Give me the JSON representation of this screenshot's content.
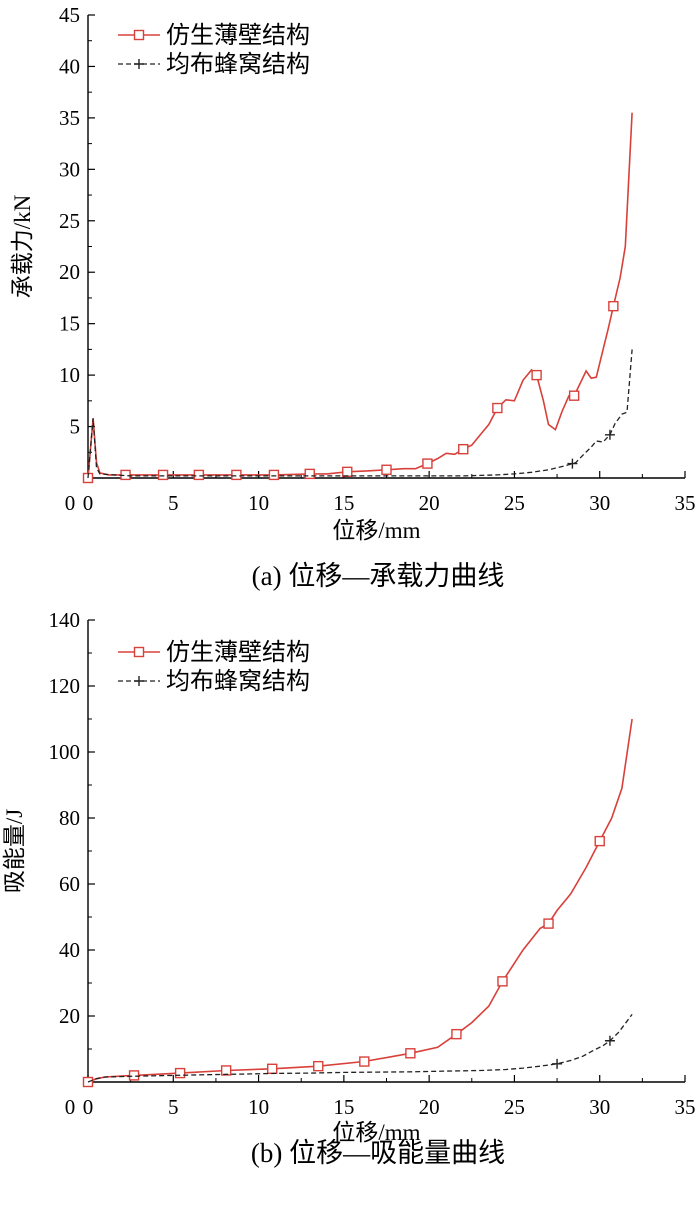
{
  "figure": {
    "colors": {
      "bionic": "#d8403a",
      "honeycomb": "#222222"
    }
  },
  "chart_data": [
    {
      "type": "line",
      "caption": "(a)  位移—承载力曲线",
      "xlabel": "位移/mm",
      "ylabel": "承载力/kN",
      "xlim": [
        0,
        35
      ],
      "ylim": [
        0,
        45
      ],
      "xticks": [
        0,
        5,
        10,
        15,
        20,
        25,
        30,
        35
      ],
      "yticks": [
        5,
        10,
        15,
        20,
        25,
        30,
        35,
        40,
        45
      ],
      "grid": false,
      "legend_position": "top-left",
      "series": [
        {
          "name": "仿生薄壁结构",
          "style": "solid",
          "marker": "square",
          "x": [
            0,
            0.3,
            0.5,
            0.7,
            1.2,
            2.2,
            3.5,
            4.4,
            5.5,
            6.5,
            8.0,
            8.7,
            10.0,
            10.9,
            12.0,
            13.0,
            14.0,
            15.2,
            16.5,
            17.5,
            18.5,
            19.2,
            19.9,
            20.5,
            21.0,
            21.5,
            22.0,
            22.5,
            23.0,
            23.5,
            24.0,
            24.5,
            25.0,
            25.5,
            26.0,
            26.3,
            26.7,
            27.0,
            27.4,
            27.8,
            28.2,
            28.5,
            28.8,
            29.2,
            29.5,
            29.8,
            30.2,
            30.5,
            30.8,
            31.2,
            31.5,
            31.9
          ],
          "y": [
            0,
            5.8,
            1.5,
            0.5,
            0.3,
            0.3,
            0.3,
            0.3,
            0.3,
            0.3,
            0.3,
            0.3,
            0.3,
            0.3,
            0.35,
            0.4,
            0.4,
            0.6,
            0.7,
            0.8,
            0.9,
            0.9,
            1.4,
            1.9,
            2.4,
            2.3,
            2.8,
            3.2,
            4.2,
            5.2,
            6.8,
            7.6,
            7.5,
            9.5,
            10.5,
            10.0,
            7.5,
            5.2,
            4.7,
            6.5,
            8.0,
            8.0,
            9.0,
            10.4,
            9.7,
            9.8,
            12.5,
            14.5,
            16.7,
            19.5,
            22.5,
            35.5
          ],
          "marker_x": [
            0,
            2.2,
            4.4,
            6.5,
            8.7,
            10.9,
            13.0,
            15.2,
            17.5,
            19.9,
            22.0,
            24.0,
            26.3,
            28.5,
            30.8
          ]
        },
        {
          "name": "均布蜂窝结构",
          "style": "dashed",
          "marker": "plus",
          "x": [
            0,
            0.3,
            0.5,
            0.7,
            1.5,
            2.5,
            3.5,
            5.0,
            7.0,
            9.0,
            11.0,
            13.0,
            15.0,
            17.0,
            19.0,
            20.0,
            21.0,
            22.0,
            23.0,
            24.0,
            25.0,
            26.0,
            27.0,
            28.0,
            28.6,
            29.0,
            29.5,
            29.8,
            30.2,
            30.6,
            30.9,
            31.3,
            31.6,
            31.9
          ],
          "y": [
            0,
            5.8,
            1.0,
            0.4,
            0.3,
            0.2,
            0.2,
            0.2,
            0.2,
            0.2,
            0.2,
            0.2,
            0.2,
            0.2,
            0.2,
            0.2,
            0.2,
            0.2,
            0.25,
            0.3,
            0.4,
            0.55,
            0.8,
            1.2,
            1.5,
            2.2,
            3.0,
            3.6,
            3.5,
            4.2,
            5.3,
            6.2,
            6.4,
            12.5
          ],
          "marker_x": [
            28.4,
            30.6
          ]
        }
      ]
    },
    {
      "type": "line",
      "caption": "(b)  位移—吸能量曲线",
      "xlabel": "位移/mm",
      "ylabel": "吸能量/J",
      "xlim": [
        0,
        35
      ],
      "ylim": [
        0,
        140
      ],
      "xticks": [
        0,
        5,
        10,
        15,
        20,
        25,
        30,
        35
      ],
      "yticks": [
        20,
        40,
        60,
        80,
        100,
        120,
        140
      ],
      "grid": false,
      "legend_position": "top-left",
      "series": [
        {
          "name": "仿生薄壁结构",
          "style": "solid",
          "marker": "square",
          "x": [
            0,
            0.5,
            1.0,
            2.7,
            5.4,
            8.1,
            10.8,
            13.5,
            16.2,
            18.9,
            20.5,
            21.6,
            22.5,
            23.5,
            24.3,
            25.5,
            26.5,
            27.0,
            27.5,
            28.3,
            29.2,
            30.0,
            30.7,
            31.3,
            31.9
          ],
          "y": [
            0,
            1.0,
            1.5,
            2.0,
            2.7,
            3.5,
            4.0,
            4.8,
            6.2,
            8.7,
            10.5,
            14.5,
            18.0,
            23.0,
            30.5,
            40.0,
            46.5,
            48.0,
            52.0,
            57.0,
            65.0,
            73.0,
            80.0,
            89.0,
            110.0
          ],
          "marker_x": [
            0,
            2.7,
            5.4,
            8.1,
            10.8,
            13.5,
            16.2,
            18.9,
            21.6,
            24.3,
            27.0,
            30.0
          ]
        },
        {
          "name": "均布蜂窝结构",
          "style": "dashed",
          "marker": "plus",
          "x": [
            0,
            0.5,
            1.0,
            3.0,
            5.0,
            7.0,
            9.0,
            11.0,
            13.0,
            15.0,
            17.0,
            19.0,
            21.0,
            23.0,
            24.5,
            25.5,
            26.5,
            27.5,
            28.3,
            29.0,
            29.6,
            30.2,
            30.6,
            31.1,
            31.9
          ],
          "y": [
            0,
            1.0,
            1.5,
            1.8,
            2.0,
            2.2,
            2.4,
            2.6,
            2.7,
            2.9,
            3.0,
            3.1,
            3.3,
            3.5,
            3.8,
            4.2,
            4.8,
            5.5,
            6.5,
            7.8,
            9.5,
            11.0,
            12.5,
            15.0,
            20.5
          ],
          "marker_x": [
            27.5,
            30.6
          ]
        }
      ]
    }
  ]
}
